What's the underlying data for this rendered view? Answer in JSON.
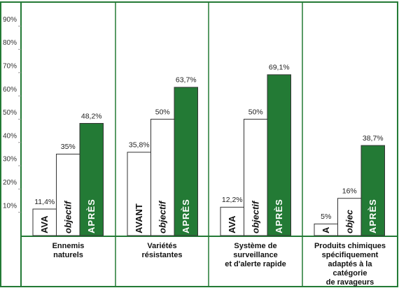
{
  "chart_data": {
    "type": "bar",
    "categories": [
      [
        "Ennemis",
        "naturels"
      ],
      [
        "Variétés",
        "résistantes"
      ],
      [
        "Système de",
        "surveillance",
        "et d'alerte rapide"
      ],
      [
        "Produits chimiques",
        "spécifiquement",
        "adaptés à la",
        "catégorie",
        "de ravageurs"
      ]
    ],
    "series": [
      {
        "color": "#ffffff",
        "text_color": "#111111",
        "bar_labels": [
          "AVA",
          "AVANT",
          "AVA",
          "A"
        ],
        "values": [
          11.4,
          35.8,
          12.2,
          5
        ],
        "value_labels": [
          "11,4%",
          "35,8%",
          "12,2%",
          "5%"
        ]
      },
      {
        "color": "#ffffff",
        "text_color": "#111111",
        "bar_labels": [
          "objectif",
          "objectif",
          "objectif",
          "objec"
        ],
        "values": [
          35,
          50,
          50,
          16
        ],
        "value_labels": [
          "35%",
          "50%",
          "50%",
          "16%"
        ]
      },
      {
        "color": "#237a35",
        "text_color": "#ffffff",
        "bar_labels": [
          "APRÈS",
          "APRÈS",
          "APRÈS",
          "APRÈS"
        ],
        "values": [
          48.2,
          63.7,
          69.1,
          38.7
        ],
        "value_labels": [
          "48,2%",
          "63,7%",
          "69,1%",
          "38,7%"
        ]
      }
    ],
    "ylim": [
      0,
      100
    ],
    "yticks": [
      {
        "value": 10,
        "label": "10%"
      },
      {
        "value": 20,
        "label": "20%"
      },
      {
        "value": 30,
        "label": "30%"
      },
      {
        "value": 40,
        "label": "40%"
      },
      {
        "value": 50,
        "label": "50%"
      },
      {
        "value": 60,
        "label": "60%"
      },
      {
        "value": 70,
        "label": "70%"
      },
      {
        "value": 80,
        "label": "80%"
      },
      {
        "value": 90,
        "label": "90%"
      }
    ]
  }
}
